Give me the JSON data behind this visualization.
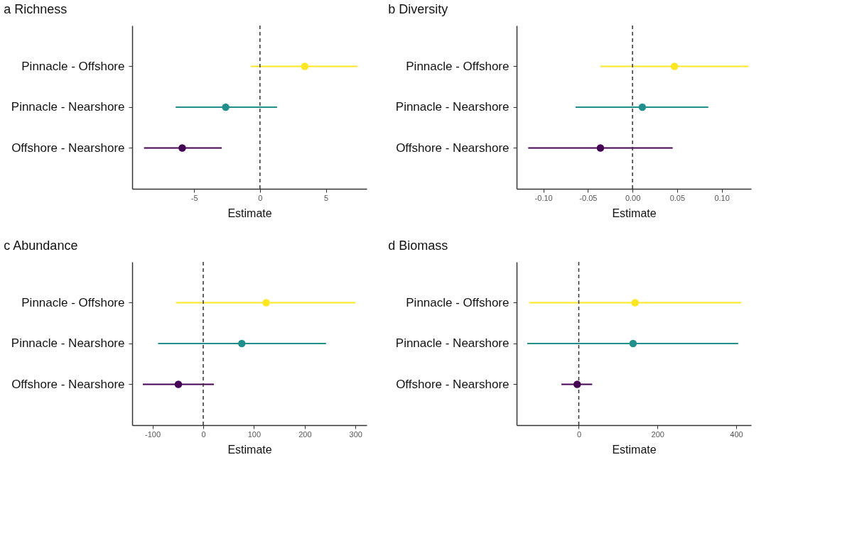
{
  "chart_data": [
    {
      "type": "scatter",
      "orientation": "horizontal",
      "title": "a  Richness",
      "xlabel": "Estimate",
      "categories": [
        "Pinnacle - Offshore",
        "Pinnacle - Nearshore",
        "Offshore - Nearshore"
      ],
      "values": [
        3.4,
        -2.6,
        -5.9
      ],
      "errors": [
        [
          -0.7,
          7.4
        ],
        [
          -6.4,
          1.3
        ],
        [
          -8.8,
          -2.9
        ]
      ],
      "colors": [
        "#fde725",
        "#21908d",
        "#440154"
      ],
      "xlim": [
        -9.7,
        8.1
      ],
      "xticks": [
        -5,
        0,
        5
      ],
      "ref_lines": [
        {
          "axis": "x",
          "value": 0,
          "line_style": "dashed"
        }
      ],
      "marker": "circle",
      "grid": false
    },
    {
      "type": "scatter",
      "orientation": "horizontal",
      "title": "b  Diversity",
      "xlabel": "Estimate",
      "categories": [
        "Pinnacle - Offshore",
        "Pinnacle - Nearshore",
        "Offshore - Nearshore"
      ],
      "values": [
        0.047,
        0.011,
        -0.036
      ],
      "errors": [
        [
          -0.036,
          0.13
        ],
        [
          -0.064,
          0.085
        ],
        [
          -0.117,
          0.045
        ]
      ],
      "colors": [
        "#fde725",
        "#21908d",
        "#440154"
      ],
      "xlim": [
        -0.13,
        0.133
      ],
      "xticks": [
        {
          "value": -0.1,
          "label": "-0.10"
        },
        {
          "value": -0.05,
          "label": "-0.05"
        },
        {
          "value": 0,
          "label": "0.00"
        },
        {
          "value": 0.05,
          "label": "0.05"
        },
        {
          "value": 0.1,
          "label": "0.10"
        }
      ],
      "ref_lines": [
        {
          "axis": "x",
          "value": 0,
          "line_style": "dashed"
        }
      ],
      "marker": "circle",
      "grid": false
    },
    {
      "type": "scatter",
      "orientation": "horizontal",
      "title": "c  Abundance",
      "xlabel": "Estimate",
      "categories": [
        "Pinnacle - Offshore",
        "Pinnacle - Nearshore",
        "Offshore - Nearshore"
      ],
      "values": [
        124,
        76,
        -49
      ],
      "errors": [
        [
          -54,
          300
        ],
        [
          -89,
          242
        ],
        [
          -119,
          21
        ]
      ],
      "colors": [
        "#fde725",
        "#21908d",
        "#440154"
      ],
      "xlim": [
        -140,
        322
      ],
      "xticks": [
        -100,
        0,
        100,
        200,
        300
      ],
      "ref_lines": [
        {
          "axis": "x",
          "value": 0,
          "line_style": "dashed"
        }
      ],
      "marker": "circle",
      "grid": false
    },
    {
      "type": "scatter",
      "orientation": "horizontal",
      "title": "d  Biomass",
      "xlabel": "Estimate",
      "categories": [
        "Pinnacle - Offshore",
        "Pinnacle - Nearshore",
        "Offshore - Nearshore"
      ],
      "values": [
        143,
        138,
        -4
      ],
      "errors": [
        [
          -126,
          413
        ],
        [
          -131,
          405
        ],
        [
          -44,
          34
        ]
      ],
      "colors": [
        "#fde725",
        "#21908d",
        "#440154"
      ],
      "xlim": [
        -158,
        438
      ],
      "xticks": [
        0,
        200,
        400
      ],
      "ref_lines": [
        {
          "axis": "x",
          "value": 0,
          "line_style": "dashed"
        }
      ],
      "marker": "circle",
      "grid": false
    }
  ]
}
